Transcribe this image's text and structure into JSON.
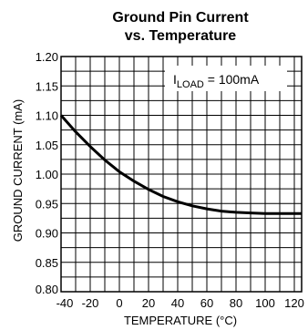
{
  "chart_data": {
    "type": "line",
    "title_line1": "Ground Pin Current",
    "title_line2": "vs. Temperature",
    "xlabel": "TEMPERATURE (°C)",
    "ylabel": "GROUND CURRENT (mA)",
    "xlim": [
      -40,
      125
    ],
    "ylim": [
      0.8,
      1.2
    ],
    "x_ticks": [
      "-40",
      "-20",
      "0",
      "20",
      "40",
      "60",
      "80",
      "100",
      "120"
    ],
    "y_ticks": [
      "0.80",
      "0.85",
      "0.90",
      "0.95",
      "1.00",
      "1.05",
      "1.10",
      "1.15",
      "1.20"
    ],
    "x_tick_values": [
      -40,
      -20,
      0,
      20,
      40,
      60,
      80,
      100,
      120
    ],
    "y_tick_values": [
      0.8,
      0.85,
      0.9,
      0.95,
      1.0,
      1.05,
      1.1,
      1.15,
      1.2
    ],
    "grid": true,
    "annotation": {
      "main": "I",
      "subscript": "LOAD",
      "value": " = 100mA"
    },
    "series": [
      {
        "x": [
          -40,
          -30,
          -20,
          -10,
          0,
          10,
          20,
          30,
          40,
          50,
          60,
          70,
          80,
          90,
          100,
          110,
          125
        ],
        "y": [
          1.1,
          1.072,
          1.047,
          1.024,
          1.004,
          0.988,
          0.974,
          0.962,
          0.953,
          0.946,
          0.941,
          0.937,
          0.935,
          0.934,
          0.933,
          0.933,
          0.933
        ]
      }
    ],
    "line_color": "#000000"
  }
}
